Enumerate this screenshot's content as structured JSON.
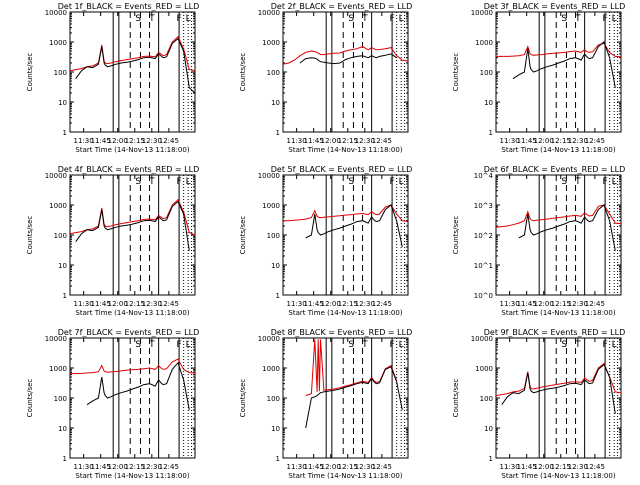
{
  "chart_data": [
    {
      "type": "line",
      "title": "Det 1f_BLACK = Events_RED = LLD",
      "ylabel": "Counts/sec",
      "xlabel": "Start Time (14-Nov-13 11:18:00)",
      "x_ticks": [
        "11:30",
        "11:45",
        "12:00",
        "12:15",
        "12:30",
        "12:45"
      ],
      "y_ticks": [
        "1",
        "10",
        "100",
        "1000",
        "10000"
      ],
      "ylim": [
        1,
        10000
      ],
      "y_scale": "log",
      "x_minutes": [
        0,
        5,
        10,
        15,
        20,
        25,
        28,
        30,
        31,
        32,
        33,
        36,
        40,
        45,
        50,
        55,
        60,
        65,
        70,
        75,
        78,
        80,
        82,
        85,
        90,
        95,
        100,
        105,
        110
      ],
      "series": [
        {
          "name": "BLACK = Events",
          "color": "#000000",
          "values": [
            null,
            60,
            110,
            150,
            140,
            180,
            700,
            200,
            170,
            160,
            150,
            160,
            180,
            200,
            210,
            230,
            260,
            300,
            310,
            280,
            400,
            350,
            300,
            320,
            900,
            1300,
            500,
            30,
            20
          ]
        },
        {
          "name": "RED = LLD",
          "color": "#e00000",
          "values": [
            110,
            120,
            130,
            150,
            160,
            200,
            800,
            230,
            200,
            190,
            190,
            200,
            220,
            240,
            260,
            280,
            300,
            330,
            340,
            320,
            450,
            400,
            350,
            380,
            1000,
            1500,
            600,
            120,
            110
          ]
        }
      ]
    },
    {
      "type": "line",
      "title": "Det 2f_BLACK = Events_RED = LLD",
      "ylabel": "Counts/sec",
      "xlabel": "Start Time (14-Nov-13 11:18:00)",
      "x_ticks": [
        "11:30",
        "11:45",
        "12:00",
        "12:15",
        "12:30",
        "12:45"
      ],
      "y_ticks": [
        "1",
        "10",
        "100",
        "1000",
        "10000"
      ],
      "ylim": [
        1,
        10000
      ],
      "y_scale": "log",
      "x_minutes": [
        0,
        5,
        10,
        15,
        20,
        25,
        28,
        30,
        31,
        32,
        33,
        36,
        40,
        45,
        50,
        55,
        60,
        65,
        70,
        75,
        78,
        80,
        82,
        85,
        90,
        95,
        100,
        105,
        110
      ],
      "series": [
        {
          "name": "BLACK = Events",
          "color": "#000000",
          "values": [
            null,
            null,
            null,
            200,
            280,
            300,
            290,
            270,
            250,
            230,
            220,
            210,
            200,
            190,
            200,
            260,
            300,
            330,
            350,
            300,
            350,
            320,
            300,
            330,
            360,
            400,
            300,
            null,
            null
          ]
        },
        {
          "name": "RED = LLD",
          "color": "#e00000",
          "values": [
            180,
            200,
            250,
            350,
            450,
            500,
            480,
            450,
            420,
            400,
            380,
            380,
            400,
            420,
            430,
            500,
            550,
            600,
            700,
            550,
            650,
            600,
            550,
            560,
            600,
            650,
            350,
            250,
            230
          ]
        }
      ]
    },
    {
      "type": "line",
      "title": "Det 3f_BLACK = Events_RED = LLD",
      "ylabel": "Counts/sec",
      "xlabel": "Start Time (14-Nov-13 11:18:00)",
      "x_ticks": [
        "11:30",
        "11:45",
        "12:00",
        "12:15",
        "12:30",
        "12:45"
      ],
      "y_ticks": [
        "1",
        "10",
        "100",
        "1000",
        "10000"
      ],
      "ylim": [
        1,
        10000
      ],
      "y_scale": "log",
      "x_minutes": [
        0,
        5,
        10,
        15,
        20,
        25,
        28,
        30,
        31,
        32,
        33,
        36,
        40,
        45,
        50,
        55,
        60,
        65,
        70,
        75,
        78,
        80,
        82,
        85,
        90,
        95,
        100,
        105,
        110
      ],
      "series": [
        {
          "name": "BLACK = Events",
          "color": "#000000",
          "values": [
            null,
            null,
            null,
            60,
            80,
            100,
            600,
            150,
            120,
            110,
            100,
            110,
            130,
            150,
            170,
            200,
            230,
            280,
            300,
            250,
            400,
            320,
            280,
            300,
            700,
            1000,
            300,
            30,
            null
          ]
        },
        {
          "name": "RED = LLD",
          "color": "#e00000",
          "values": [
            330,
            330,
            330,
            340,
            350,
            380,
            700,
            400,
            380,
            370,
            360,
            370,
            380,
            400,
            420,
            430,
            450,
            480,
            500,
            450,
            550,
            480,
            450,
            470,
            800,
            900,
            450,
            330,
            320
          ]
        }
      ]
    },
    {
      "type": "line",
      "title": "Det 4f_BLACK = Events_RED = LLD",
      "ylabel": "Counts/sec",
      "xlabel": "Start Time (14-Nov-13 11:18:00)",
      "x_ticks": [
        "11:30",
        "11:45",
        "12:00",
        "12:15",
        "12:30",
        "12:45"
      ],
      "y_ticks": [
        "1",
        "10",
        "100",
        "1000",
        "10000"
      ],
      "ylim": [
        1,
        10000
      ],
      "y_scale": "log",
      "x_minutes": [
        0,
        5,
        10,
        15,
        20,
        25,
        28,
        30,
        31,
        32,
        33,
        36,
        40,
        45,
        50,
        55,
        60,
        65,
        70,
        75,
        78,
        80,
        82,
        85,
        90,
        95,
        100,
        105,
        110
      ],
      "series": [
        {
          "name": "BLACK = Events",
          "color": "#000000",
          "values": [
            null,
            60,
            110,
            150,
            140,
            180,
            700,
            200,
            170,
            160,
            150,
            160,
            180,
            200,
            210,
            230,
            260,
            300,
            310,
            280,
            400,
            350,
            300,
            320,
            900,
            1300,
            500,
            30,
            null
          ]
        },
        {
          "name": "RED = LLD",
          "color": "#e00000",
          "values": [
            110,
            120,
            130,
            150,
            160,
            200,
            800,
            230,
            200,
            190,
            190,
            200,
            220,
            240,
            260,
            280,
            300,
            330,
            340,
            320,
            450,
            400,
            350,
            380,
            1000,
            1500,
            600,
            120,
            100
          ]
        }
      ]
    },
    {
      "type": "line",
      "title": "Det 5f_BLACK = Events_RED = LLD",
      "ylabel": "Counts/sec",
      "xlabel": "Start Time (14-Nov-13 11:18:00)",
      "x_ticks": [
        "11:30",
        "11:45",
        "12:00",
        "12:15",
        "12:30",
        "12:45"
      ],
      "y_ticks": [
        "1",
        "10",
        "100",
        "1000",
        "10000"
      ],
      "ylim": [
        1,
        10000
      ],
      "y_scale": "log",
      "x_minutes": [
        0,
        5,
        10,
        15,
        20,
        25,
        28,
        30,
        31,
        32,
        33,
        36,
        40,
        45,
        50,
        55,
        60,
        65,
        70,
        75,
        78,
        80,
        82,
        85,
        90,
        95,
        100,
        105,
        110
      ],
      "series": [
        {
          "name": "BLACK = Events",
          "color": "#000000",
          "values": [
            null,
            null,
            null,
            null,
            80,
            100,
            500,
            150,
            120,
            110,
            100,
            110,
            130,
            150,
            170,
            200,
            230,
            280,
            300,
            250,
            400,
            320,
            280,
            300,
            700,
            1000,
            300,
            40,
            null
          ]
        },
        {
          "name": "RED = LLD",
          "color": "#e00000",
          "values": [
            300,
            300,
            310,
            320,
            340,
            380,
            650,
            420,
            400,
            380,
            380,
            390,
            400,
            420,
            440,
            460,
            480,
            500,
            520,
            480,
            600,
            520,
            480,
            500,
            850,
            1000,
            500,
            300,
            280
          ]
        }
      ]
    },
    {
      "type": "line",
      "title": "Det 6f_BLACK = Events_RED = LLD",
      "ylabel": "Counts/sec",
      "xlabel": "Start Time (14-Nov-13 11:18:00)",
      "x_ticks": [
        "11:30",
        "11:45",
        "12:00",
        "12:15",
        "12:30",
        "12:45"
      ],
      "y_ticks": [
        "10^0",
        "10^1",
        "10^2",
        "10^3",
        "10^4"
      ],
      "ylim": [
        1,
        10000
      ],
      "y_scale": "log",
      "x_minutes": [
        0,
        5,
        10,
        15,
        20,
        25,
        28,
        30,
        31,
        32,
        33,
        36,
        40,
        45,
        50,
        55,
        60,
        65,
        70,
        75,
        78,
        80,
        82,
        85,
        90,
        95,
        100,
        105,
        110
      ],
      "series": [
        {
          "name": "BLACK = Events",
          "color": "#000000",
          "values": [
            null,
            null,
            null,
            null,
            80,
            100,
            500,
            150,
            120,
            110,
            100,
            110,
            130,
            150,
            170,
            200,
            230,
            280,
            300,
            250,
            400,
            320,
            280,
            300,
            700,
            1000,
            300,
            30,
            null
          ]
        },
        {
          "name": "RED = LLD",
          "color": "#e00000",
          "values": [
            180,
            190,
            200,
            220,
            250,
            300,
            600,
            350,
            320,
            310,
            300,
            310,
            320,
            340,
            360,
            380,
            400,
            430,
            450,
            420,
            550,
            480,
            430,
            450,
            900,
            1000,
            500,
            250,
            240
          ]
        }
      ]
    },
    {
      "type": "line",
      "title": "Det 7f_BLACK = Events_RED = LLD",
      "ylabel": "Counts/sec",
      "xlabel": "Start Time (14-Nov-13 11:18:00)",
      "x_ticks": [
        "11:30",
        "11:45",
        "12:00",
        "12:15",
        "12:30",
        "12:45"
      ],
      "y_ticks": [
        "1",
        "10",
        "100",
        "1000",
        "10000"
      ],
      "ylim": [
        1,
        10000
      ],
      "y_scale": "log",
      "x_minutes": [
        0,
        5,
        10,
        15,
        20,
        25,
        28,
        30,
        31,
        32,
        33,
        36,
        40,
        45,
        50,
        55,
        60,
        65,
        70,
        75,
        78,
        80,
        82,
        85,
        90,
        95,
        100,
        105,
        110
      ],
      "series": [
        {
          "name": "BLACK = Events",
          "color": "#000000",
          "values": [
            null,
            null,
            null,
            60,
            80,
            100,
            500,
            150,
            120,
            110,
            100,
            110,
            130,
            150,
            170,
            200,
            230,
            280,
            300,
            250,
            400,
            320,
            280,
            300,
            900,
            1500,
            400,
            40,
            null
          ]
        },
        {
          "name": "RED = LLD",
          "color": "#e00000",
          "values": [
            650,
            650,
            660,
            680,
            700,
            750,
            1200,
            800,
            760,
            740,
            720,
            740,
            760,
            800,
            850,
            880,
            900,
            950,
            1000,
            900,
            1200,
            1000,
            900,
            950,
            1600,
            2000,
            900,
            700,
            680
          ]
        }
      ]
    },
    {
      "type": "line",
      "title": "Det 8f_BLACK = Events_RED = LLD",
      "ylabel": "Counts/sec",
      "xlabel": "Start Time (14-Nov-13 11:18:00)",
      "x_ticks": [
        "11:30",
        "11:45",
        "12:00",
        "12:15",
        "12:30",
        "12:45"
      ],
      "y_ticks": [
        "1",
        "10",
        "100",
        "1000",
        "10000"
      ],
      "ylim": [
        1,
        10000
      ],
      "y_scale": "log",
      "x_minutes": [
        0,
        5,
        10,
        15,
        20,
        25,
        28,
        30,
        31,
        32,
        33,
        36,
        40,
        45,
        50,
        55,
        60,
        65,
        70,
        75,
        78,
        80,
        82,
        85,
        90,
        95,
        100,
        105,
        110
      ],
      "series": [
        {
          "name": "BLACK = Events",
          "color": "#000000",
          "values": [
            null,
            null,
            null,
            null,
            10,
            100,
            110,
            120,
            130,
            140,
            150,
            160,
            170,
            180,
            200,
            230,
            260,
            300,
            330,
            300,
            450,
            350,
            300,
            320,
            900,
            1100,
            350,
            40,
            null
          ]
        },
        {
          "name": "RED = LLD",
          "color": "#e00000",
          "values": [
            null,
            null,
            null,
            null,
            120,
            140,
            9000,
            160,
            9000,
            170,
            9000,
            180,
            190,
            200,
            220,
            250,
            280,
            320,
            360,
            330,
            480,
            380,
            330,
            350,
            950,
            1200,
            380,
            null,
            null
          ]
        }
      ]
    },
    {
      "type": "line",
      "title": "Det 9f_BLACK = Events_RED = LLD",
      "ylabel": "Counts/sec",
      "xlabel": "Start Time (14-Nov-13 11:18:00)",
      "x_ticks": [
        "11:30",
        "11:45",
        "12:00",
        "12:15",
        "12:30",
        "12:45"
      ],
      "y_ticks": [
        "1",
        "10",
        "100",
        "1000",
        "10000"
      ],
      "ylim": [
        1,
        10000
      ],
      "y_scale": "log",
      "x_minutes": [
        0,
        5,
        10,
        15,
        20,
        25,
        28,
        30,
        31,
        32,
        33,
        36,
        40,
        45,
        50,
        55,
        60,
        65,
        70,
        75,
        78,
        80,
        82,
        85,
        90,
        95,
        100,
        105,
        110
      ],
      "series": [
        {
          "name": "BLACK = Events",
          "color": "#000000",
          "values": [
            null,
            60,
            110,
            150,
            140,
            180,
            700,
            200,
            170,
            160,
            150,
            160,
            180,
            200,
            210,
            230,
            260,
            300,
            310,
            280,
            400,
            350,
            300,
            320,
            900,
            1300,
            500,
            30,
            null
          ]
        },
        {
          "name": "RED = LLD",
          "color": "#e00000",
          "values": [
            120,
            130,
            140,
            160,
            170,
            210,
            750,
            240,
            210,
            200,
            200,
            210,
            230,
            250,
            270,
            290,
            310,
            340,
            350,
            330,
            460,
            410,
            360,
            390,
            1000,
            1400,
            500,
            160,
            150
          ]
        }
      ]
    }
  ],
  "markers": {
    "solid_minutes": [
      -2,
      38,
      43,
      78,
      96,
      111
    ],
    "dashed_minutes": [
      53,
      62,
      70
    ],
    "dotted_minutes": [
      100,
      104,
      107
    ],
    "letters": [
      "S",
      "T",
      "F",
      "L"
    ],
    "letters_minutes": [
      60,
      72,
      96,
      104
    ]
  }
}
